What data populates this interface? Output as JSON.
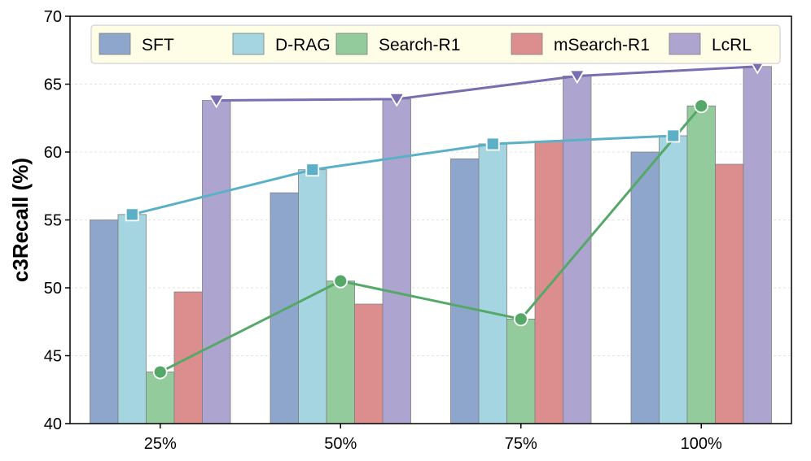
{
  "chart_data": {
    "type": "bar",
    "title": "",
    "xlabel": "",
    "ylabel": "c3Recall (%)",
    "categories": [
      "25%",
      "50%",
      "75%",
      "100%"
    ],
    "ylim": [
      40,
      70
    ],
    "yticks": [
      40,
      45,
      50,
      55,
      60,
      65,
      70
    ],
    "grid": true,
    "legend_position": "top",
    "series": [
      {
        "name": "SFT",
        "values": [
          55.0,
          57.0,
          59.5,
          60.0
        ],
        "color": "#8fa6cc",
        "line": false
      },
      {
        "name": "D-RAG",
        "values": [
          55.4,
          58.7,
          60.6,
          61.2
        ],
        "color": "#a4d5e0",
        "line": true,
        "line_color": "#5bb0c8",
        "marker": "square"
      },
      {
        "name": "Search-R1",
        "values": [
          43.8,
          50.5,
          47.7,
          63.4
        ],
        "color": "#93cb9d",
        "line": true,
        "line_color": "#55a868",
        "marker": "circle"
      },
      {
        "name": "mSearch-R1",
        "values": [
          49.7,
          48.8,
          60.8,
          59.1
        ],
        "color": "#dc8e8e",
        "line": false
      },
      {
        "name": "LcRL",
        "values": [
          63.8,
          63.9,
          65.6,
          66.3
        ],
        "color": "#ada5cf",
        "line": true,
        "line_color": "#7a6db0",
        "marker": "triangle-down"
      }
    ]
  }
}
